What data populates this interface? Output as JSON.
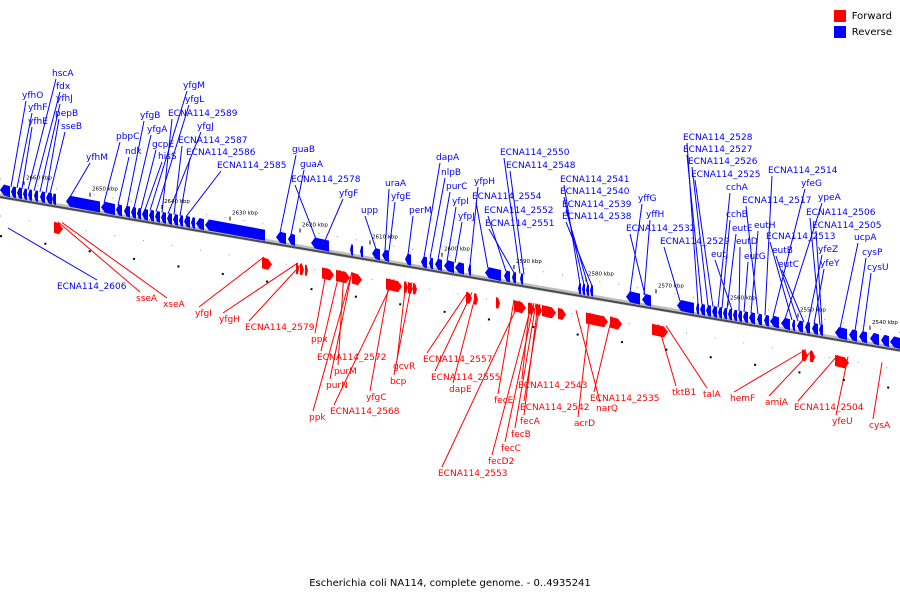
{
  "legend": {
    "forward": {
      "label": "Forward",
      "color": "#ff0000"
    },
    "reverse": {
      "label": "Reverse",
      "color": "#0000ff"
    }
  },
  "caption": "Escherichia coli NA114, complete genome. - 0..4935241",
  "colors": {
    "forward": "#ff0000",
    "reverse": "#0000ff",
    "backbone": "#7f7f7f"
  },
  "ticks": [
    "2660 kbp",
    "2650 kbp",
    "2640 kbp",
    "2630 kbp",
    "2620 kbp",
    "2610 kbp",
    "2600 kbp",
    "2590 kbp",
    "2580 kbp",
    "2570 kbp",
    "2560 kbp",
    "2550 kbp",
    "2540 kbp"
  ],
  "reverse_genes": [
    "yfhO",
    "yfhF",
    "yfhE",
    "hscA",
    "fdx",
    "yfhJ",
    "pepB",
    "sseB",
    "yfhM",
    "pbpC",
    "ndk",
    "yfgB",
    "yfgA",
    "gcpE",
    "hisS",
    "yfgM",
    "yfgL",
    "ECNA114_2589",
    "yfgJ",
    "ECNA114_2587",
    "ECNA114_2586",
    "ECNA114_2585",
    "guaB",
    "guaA",
    "ECNA114_2578",
    "yfgF",
    "upp",
    "uraA",
    "yfgE",
    "perM",
    "dapA",
    "nlpB",
    "purC",
    "yfpI",
    "yfpJ",
    "yfpH",
    "ECNA114_2554",
    "ECNA114_2552",
    "ECNA114_2551",
    "ECNA114_2550",
    "ECNA114_2548",
    "ECNA114_2541",
    "ECNA114_2540",
    "ECNA114_2539",
    "ECNA114_2538",
    "yffG",
    "yffH",
    "ECNA114_2532",
    "ECNA114_2529",
    "ECNA114_2528",
    "ECNA114_2527",
    "ECNA114_2526",
    "ECNA114_2525",
    "cchA",
    "cchB",
    "eutE",
    "eutJ",
    "eutD",
    "eutG",
    "eutH",
    "ECNA114_2517",
    "ECNA114_2514",
    "yfeG",
    "ypeA",
    "ECNA114_2513",
    "eutB",
    "eutC",
    "yfeZ",
    "yfeY",
    "ECNA114_2506",
    "ECNA114_2505",
    "ucpA",
    "cysP",
    "cysU",
    "ECNA114_2606"
  ],
  "forward_genes": [
    "sseA",
    "xseA",
    "yfgI",
    "yfgH",
    "ECNA114_2579",
    "ppx",
    "ECNA114_2572",
    "purM",
    "purN",
    "ppk",
    "yfgC",
    "gcvR",
    "bcp",
    "ECNA114_2568",
    "ECNA114_2557",
    "ECNA114_2555",
    "dapE",
    "fecE",
    "ECNA114_2543",
    "ECNA114_2542",
    "fecA",
    "fecB",
    "fecC",
    "fecD2",
    "ECNA114_2553",
    "narQ",
    "acrD",
    "ECNA114_2535",
    "tktB1",
    "talA",
    "hemF",
    "amiA",
    "ECNA114_2504",
    "yfeU",
    "cysA"
  ]
}
